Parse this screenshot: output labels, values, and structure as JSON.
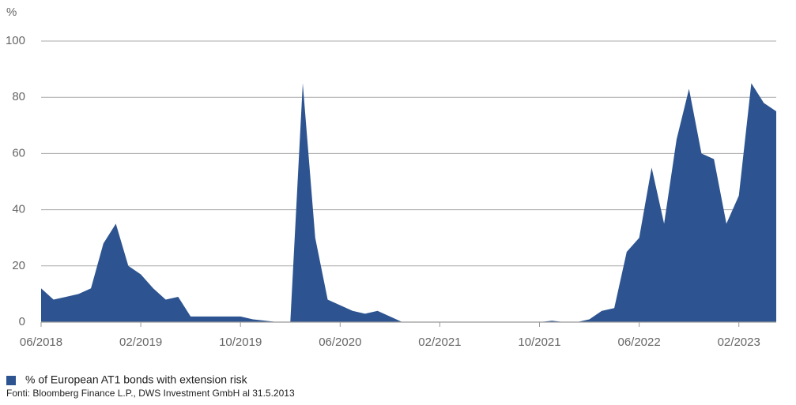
{
  "chart_data": {
    "type": "area",
    "y_label": "%",
    "categories": [
      "06/2018",
      null,
      null,
      null,
      null,
      null,
      null,
      null,
      "02/2019",
      null,
      null,
      null,
      null,
      null,
      null,
      null,
      "10/2019",
      null,
      null,
      null,
      null,
      null,
      null,
      null,
      "06/2020",
      null,
      null,
      null,
      null,
      null,
      null,
      null,
      "02/2021",
      null,
      null,
      null,
      null,
      null,
      null,
      null,
      "10/2021",
      null,
      null,
      null,
      null,
      null,
      null,
      null,
      "06/2022",
      null,
      null,
      null,
      null,
      null,
      null,
      null,
      "02/2023",
      null,
      null,
      null
    ],
    "series": [
      {
        "name": "% of European AT1 bonds with extension risk",
        "color": "#2d5490",
        "values": [
          12,
          8,
          9,
          10,
          12,
          28,
          35,
          20,
          17,
          12,
          8,
          9,
          2,
          2,
          2,
          2,
          2,
          1,
          0.5,
          0,
          0,
          85,
          30,
          8,
          6,
          4,
          3,
          4,
          2,
          0,
          0,
          0,
          0,
          0,
          0,
          0,
          0,
          0,
          0,
          0,
          0,
          0.5,
          0,
          0,
          1,
          4,
          5,
          25,
          30,
          55,
          35,
          65,
          83,
          60,
          58,
          35,
          45,
          85,
          78,
          75
        ]
      }
    ],
    "ylim": [
      0,
      100
    ],
    "yticks": [
      0,
      20,
      40,
      60,
      80,
      100
    ],
    "grid": true,
    "source": "Fonti: Bloomberg Finance L.P., DWS Investment GmbH al 31.5.2013"
  }
}
